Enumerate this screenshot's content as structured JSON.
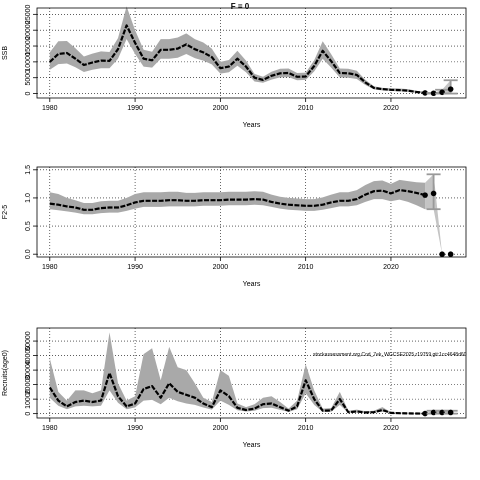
{
  "figure": {
    "title": "F = 0",
    "watermark": "stockassessment.org,Cod_7ek_WGCSE2025,r19759,git:1cc4648d60"
  },
  "chart_data": [
    {
      "type": "area",
      "panel": "ssb",
      "ylabel": "SSB",
      "xlabel": "Years",
      "xlim": [
        1978.5,
        2028.8
      ],
      "ylim": [
        -1400,
        27000
      ],
      "xticks": [
        1980,
        1990,
        2000,
        2010,
        2020
      ],
      "yticks": [
        0,
        5000,
        10000,
        15000,
        20000,
        25000
      ],
      "grid": true,
      "series": [
        {
          "role": "estimate",
          "x": [
            1980,
            1981,
            1982,
            1983,
            1984,
            1985,
            1986,
            1987,
            1988,
            1989,
            1990,
            1991,
            1992,
            1993,
            1994,
            1995,
            1996,
            1997,
            1998,
            1999,
            2000,
            2001,
            2002,
            2003,
            2004,
            2005,
            2006,
            2007,
            2008,
            2009,
            2010,
            2011,
            2012,
            2013,
            2014,
            2015,
            2016,
            2017,
            2018,
            2019,
            2020,
            2021,
            2022,
            2023,
            2024
          ],
          "values": [
            10000,
            12500,
            12800,
            11000,
            9000,
            9800,
            10400,
            10300,
            14000,
            21500,
            16000,
            11000,
            10500,
            13800,
            13800,
            14200,
            15500,
            14000,
            13000,
            11500,
            8000,
            8500,
            11000,
            8500,
            5000,
            4300,
            5600,
            6400,
            6500,
            5300,
            5400,
            8700,
            13500,
            10200,
            6500,
            6400,
            5900,
            3500,
            1800,
            1400,
            1200,
            1100,
            900,
            500,
            200
          ],
          "lower": [
            7500,
            9300,
            9500,
            8300,
            6800,
            7500,
            8000,
            8000,
            11000,
            17200,
            12500,
            8500,
            8200,
            11000,
            11000,
            11300,
            12500,
            11200,
            10400,
            9200,
            6300,
            6700,
            8800,
            6700,
            3800,
            3400,
            4400,
            5100,
            5200,
            4200,
            4300,
            7000,
            11000,
            8200,
            5100,
            5000,
            4600,
            2700,
            1300,
            1000,
            800,
            700,
            550,
            280,
            80
          ],
          "upper": [
            13000,
            16500,
            16600,
            14300,
            11700,
            12600,
            13300,
            13100,
            17500,
            27500,
            20000,
            13800,
            13200,
            17200,
            17200,
            17700,
            19000,
            17200,
            16100,
            14200,
            10000,
            10600,
            13500,
            10400,
            6200,
            5300,
            6900,
            7800,
            7900,
            6500,
            6600,
            10500,
            16500,
            12400,
            7900,
            7800,
            7200,
            4300,
            2300,
            1800,
            1700,
            1600,
            1400,
            900,
            500
          ]
        },
        {
          "role": "forecast",
          "x": [
            2025,
            2026,
            2027
          ],
          "values": [
            100,
            400,
            1400
          ],
          "lower": [
            0,
            0,
            0
          ],
          "upper": [
            200,
            1200,
            4200
          ]
        }
      ]
    },
    {
      "type": "area",
      "panel": "fbar",
      "ylabel": "F2-5",
      "xlabel": "Years",
      "xlim": [
        1978.5,
        2028.8
      ],
      "ylim": [
        -0.05,
        1.55
      ],
      "xticks": [
        1980,
        1990,
        2000,
        2010,
        2020
      ],
      "yticks": [
        0.0,
        0.5,
        1.0,
        1.5
      ],
      "grid": true,
      "series": [
        {
          "role": "estimate",
          "x": [
            1980,
            1981,
            1982,
            1983,
            1984,
            1985,
            1986,
            1987,
            1988,
            1989,
            1990,
            1991,
            1992,
            1993,
            1994,
            1995,
            1996,
            1997,
            1998,
            1999,
            2000,
            2001,
            2002,
            2003,
            2004,
            2005,
            2006,
            2007,
            2008,
            2009,
            2010,
            2011,
            2012,
            2013,
            2014,
            2015,
            2016,
            2017,
            2018,
            2019,
            2020,
            2021,
            2022,
            2023,
            2024
          ],
          "values": [
            0.9,
            0.88,
            0.85,
            0.83,
            0.79,
            0.79,
            0.82,
            0.83,
            0.83,
            0.87,
            0.92,
            0.95,
            0.95,
            0.95,
            0.96,
            0.96,
            0.95,
            0.95,
            0.96,
            0.96,
            0.96,
            0.97,
            0.97,
            0.97,
            0.98,
            0.97,
            0.93,
            0.9,
            0.88,
            0.87,
            0.86,
            0.86,
            0.88,
            0.92,
            0.95,
            0.95,
            0.98,
            1.06,
            1.12,
            1.13,
            1.08,
            1.14,
            1.12,
            1.09,
            1.05
          ],
          "lower": [
            0.8,
            0.78,
            0.76,
            0.74,
            0.71,
            0.71,
            0.73,
            0.74,
            0.74,
            0.77,
            0.81,
            0.84,
            0.84,
            0.84,
            0.85,
            0.85,
            0.85,
            0.85,
            0.86,
            0.86,
            0.86,
            0.87,
            0.87,
            0.87,
            0.88,
            0.87,
            0.84,
            0.81,
            0.79,
            0.78,
            0.77,
            0.77,
            0.79,
            0.82,
            0.85,
            0.85,
            0.87,
            0.93,
            0.98,
            0.98,
            0.94,
            0.97,
            0.93,
            0.87,
            0.8
          ],
          "upper": [
            1.1,
            1.07,
            1.0,
            0.96,
            0.91,
            0.91,
            0.94,
            0.95,
            0.95,
            1.0,
            1.07,
            1.1,
            1.1,
            1.1,
            1.11,
            1.11,
            1.09,
            1.09,
            1.1,
            1.1,
            1.1,
            1.11,
            1.11,
            1.11,
            1.12,
            1.11,
            1.06,
            1.02,
            1.0,
            0.99,
            0.98,
            0.98,
            1.01,
            1.06,
            1.1,
            1.1,
            1.14,
            1.23,
            1.3,
            1.31,
            1.25,
            1.32,
            1.3,
            1.28,
            1.27
          ]
        },
        {
          "role": "forecast",
          "x": [
            2025,
            2026,
            2027
          ],
          "values": [
            1.08,
            0.0,
            0.0
          ],
          "lower": [
            0.8,
            0.0,
            0.0
          ],
          "upper": [
            1.42,
            0.0,
            0.0
          ]
        }
      ]
    },
    {
      "type": "area",
      "panel": "recruitment",
      "ylabel": "Recruits(age0)",
      "xlabel": "Years",
      "xlim": [
        1978.5,
        2028.8
      ],
      "ylim": [
        -3000,
        59000
      ],
      "xticks": [
        1980,
        1990,
        2000,
        2010,
        2020
      ],
      "yticks": [
        0,
        10000,
        20000,
        30000,
        40000,
        50000
      ],
      "grid": true,
      "series": [
        {
          "role": "estimate",
          "x": [
            1980,
            1981,
            1982,
            1983,
            1984,
            1985,
            1986,
            1987,
            1988,
            1989,
            1990,
            1991,
            1992,
            1993,
            1994,
            1995,
            1996,
            1997,
            1998,
            1999,
            2000,
            2001,
            2002,
            2003,
            2004,
            2005,
            2006,
            2007,
            2008,
            2009,
            2010,
            2011,
            2012,
            2013,
            2014,
            2015,
            2016,
            2017,
            2018,
            2019,
            2020,
            2021,
            2022,
            2023,
            2024
          ],
          "values": [
            18000,
            9000,
            5000,
            8000,
            9000,
            8000,
            9000,
            28000,
            12000,
            5000,
            7000,
            17000,
            19000,
            11000,
            21000,
            15000,
            13000,
            11000,
            7000,
            4500,
            16000,
            12000,
            4000,
            2500,
            3500,
            6500,
            7000,
            4500,
            2000,
            5000,
            23000,
            10000,
            2000,
            2200,
            10000,
            1000,
            1500,
            800,
            1000,
            2500,
            500,
            300,
            200,
            100,
            50
          ],
          "lower": [
            11000,
            5500,
            3000,
            5000,
            5500,
            5000,
            5500,
            16000,
            7500,
            3000,
            4300,
            9000,
            9500,
            6500,
            11000,
            8500,
            7000,
            6000,
            4200,
            2800,
            9000,
            6000,
            2400,
            1500,
            2000,
            3800,
            4000,
            2600,
            1200,
            3000,
            14000,
            6000,
            1200,
            1300,
            6000,
            600,
            800,
            450,
            550,
            1400,
            250,
            150,
            100,
            40,
            20
          ],
          "upper": [
            38000,
            15000,
            9000,
            16000,
            16000,
            14000,
            16000,
            56000,
            21000,
            9000,
            12000,
            41000,
            45000,
            23000,
            46000,
            32000,
            30000,
            21000,
            11000,
            8000,
            30000,
            26000,
            7000,
            4500,
            6500,
            11000,
            12000,
            8000,
            3500,
            9000,
            34000,
            16000,
            3500,
            3900,
            15000,
            2000,
            2800,
            1600,
            2000,
            4500,
            1000,
            700,
            500,
            300,
            200
          ]
        },
        {
          "role": "forecast",
          "x": [
            2025,
            2026,
            2027
          ],
          "values": [
            800,
            800,
            800
          ],
          "lower": [
            0,
            0,
            0
          ],
          "upper": [
            2000,
            2000,
            2000
          ]
        }
      ]
    }
  ]
}
